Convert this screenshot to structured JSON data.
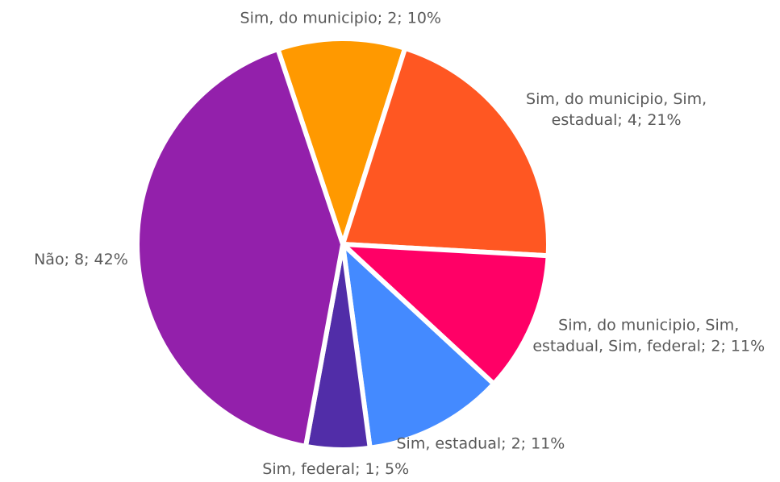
{
  "chart_data": {
    "type": "pie",
    "values": [
      10,
      21,
      11,
      11,
      5,
      42
    ],
    "value_labels": [
      "Sim, do municipio; 2; 10%",
      "Sim, do municipio, Sim, estadual; 4; 21%",
      "Sim, do municipio, Sim, estadual, Sim, federal; 2; 11%",
      "Sim, estadual; 2; 11%",
      "Sim, federal; 1; 5%",
      "Não; 8; 42%"
    ],
    "colors": [
      "#ff9900",
      "#ff5722",
      "#ff0066",
      "#448aff",
      "#512da8",
      "#9320ab"
    ]
  }
}
